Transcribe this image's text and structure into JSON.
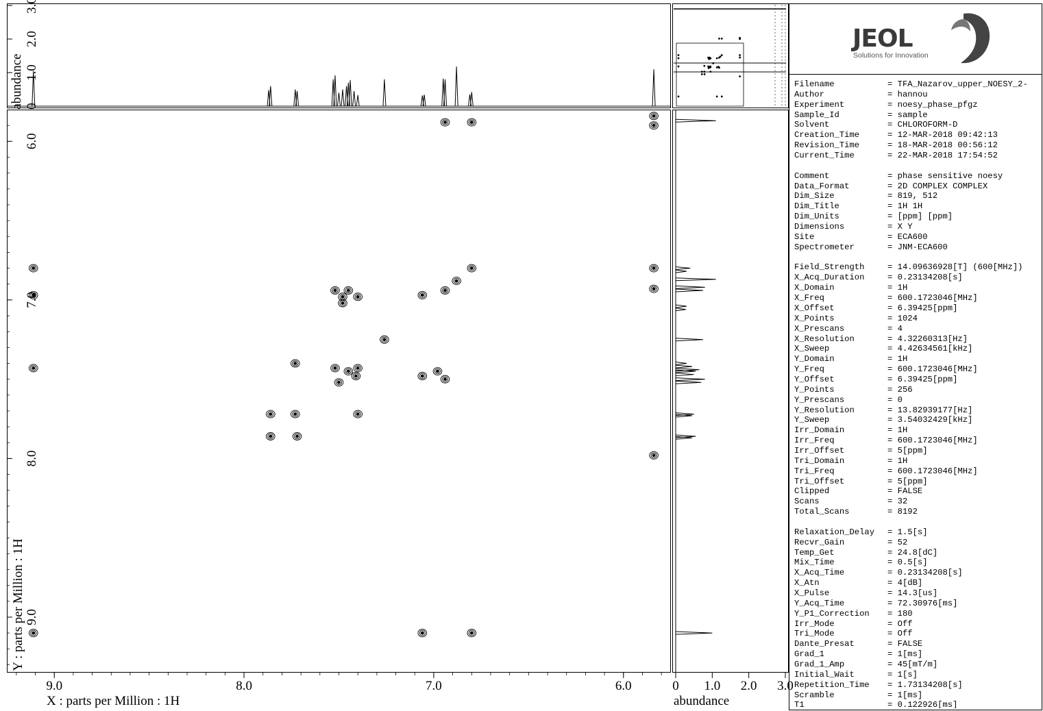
{
  "chart_data": {
    "type": "contour",
    "title": "",
    "xlabel": "X : parts per Million : 1H",
    "ylabel": "Y : parts per Million : 1H",
    "xlim": [
      9.25,
      5.75
    ],
    "ylim": [
      5.8,
      9.35
    ],
    "x_ticks": [
      9.0,
      8.0,
      7.0,
      6.0
    ],
    "x_tick_labels": [
      "9.0",
      "8.0",
      "7.0",
      "6.0"
    ],
    "y_ticks": [
      6.0,
      7.0,
      8.0,
      9.0
    ],
    "y_tick_labels": [
      "6.0",
      "7.0",
      "8.0",
      "9.0"
    ],
    "grid": false,
    "cross_peaks": [
      {
        "x": 9.11,
        "y": 6.8
      },
      {
        "x": 9.11,
        "y": 6.97
      },
      {
        "x": 9.11,
        "y": 7.43
      },
      {
        "x": 9.11,
        "y": 9.1
      },
      {
        "x": 5.84,
        "y": 5.9
      },
      {
        "x": 5.84,
        "y": 5.84
      },
      {
        "x": 5.84,
        "y": 6.8
      },
      {
        "x": 5.84,
        "y": 6.93
      },
      {
        "x": 5.84,
        "y": 7.98
      },
      {
        "x": 6.8,
        "y": 5.88
      },
      {
        "x": 6.94,
        "y": 5.88
      },
      {
        "x": 6.8,
        "y": 6.8
      },
      {
        "x": 6.88,
        "y": 6.88
      },
      {
        "x": 6.94,
        "y": 6.94
      },
      {
        "x": 7.06,
        "y": 6.97
      },
      {
        "x": 7.26,
        "y": 7.25
      },
      {
        "x": 7.45,
        "y": 6.94
      },
      {
        "x": 7.52,
        "y": 6.94
      },
      {
        "x": 7.48,
        "y": 6.98
      },
      {
        "x": 7.4,
        "y": 6.98
      },
      {
        "x": 7.48,
        "y": 7.02
      },
      {
        "x": 7.73,
        "y": 7.4
      },
      {
        "x": 7.52,
        "y": 7.43
      },
      {
        "x": 7.45,
        "y": 7.45
      },
      {
        "x": 7.4,
        "y": 7.43
      },
      {
        "x": 7.5,
        "y": 7.52
      },
      {
        "x": 7.41,
        "y": 7.48
      },
      {
        "x": 7.06,
        "y": 7.48
      },
      {
        "x": 6.98,
        "y": 7.45
      },
      {
        "x": 6.94,
        "y": 7.5
      },
      {
        "x": 7.86,
        "y": 7.72
      },
      {
        "x": 7.73,
        "y": 7.72
      },
      {
        "x": 7.4,
        "y": 7.72
      },
      {
        "x": 7.86,
        "y": 7.86
      },
      {
        "x": 7.72,
        "y": 7.86
      },
      {
        "x": 7.06,
        "y": 9.1
      },
      {
        "x": 6.8,
        "y": 9.1
      }
    ],
    "top_projection": {
      "xlabel": "",
      "ylabel": "abundance",
      "ylim": [
        0,
        3.0
      ],
      "y_ticks": [
        0,
        1.0,
        2.0,
        3.0
      ],
      "y_tick_labels": [
        "0",
        "1.0",
        "2.0",
        "3.0"
      ],
      "peaks": [
        {
          "x": 9.11,
          "h": 1.05
        },
        {
          "x": 7.87,
          "h": 0.48
        },
        {
          "x": 7.86,
          "h": 0.6
        },
        {
          "x": 7.73,
          "h": 0.5
        },
        {
          "x": 7.72,
          "h": 0.45
        },
        {
          "x": 7.53,
          "h": 0.8
        },
        {
          "x": 7.52,
          "h": 0.92
        },
        {
          "x": 7.5,
          "h": 0.4
        },
        {
          "x": 7.48,
          "h": 0.5
        },
        {
          "x": 7.46,
          "h": 0.6
        },
        {
          "x": 7.45,
          "h": 0.7
        },
        {
          "x": 7.44,
          "h": 0.78
        },
        {
          "x": 7.42,
          "h": 0.45
        },
        {
          "x": 7.4,
          "h": 0.33
        },
        {
          "x": 7.26,
          "h": 0.8
        },
        {
          "x": 7.06,
          "h": 0.32
        },
        {
          "x": 7.05,
          "h": 0.34
        },
        {
          "x": 6.95,
          "h": 0.82
        },
        {
          "x": 6.94,
          "h": 0.8
        },
        {
          "x": 6.88,
          "h": 1.18
        },
        {
          "x": 6.81,
          "h": 0.35
        },
        {
          "x": 6.8,
          "h": 0.42
        },
        {
          "x": 5.84,
          "h": 1.1
        }
      ]
    },
    "right_projection": {
      "xlabel": "abundance",
      "xlim": [
        0,
        3.0
      ],
      "x_ticks": [
        0,
        1.0,
        2.0,
        3.0
      ],
      "x_tick_labels": [
        "0",
        "1.0",
        "2.0",
        "3.0"
      ],
      "peaks": [
        {
          "y": 5.87,
          "h": 1.1
        },
        {
          "y": 6.8,
          "h": 0.4
        },
        {
          "y": 6.82,
          "h": 0.3
        },
        {
          "y": 6.87,
          "h": 1.1
        },
        {
          "y": 6.92,
          "h": 0.8
        },
        {
          "y": 6.94,
          "h": 0.75
        },
        {
          "y": 7.04,
          "h": 0.3
        },
        {
          "y": 7.06,
          "h": 0.28
        },
        {
          "y": 7.25,
          "h": 0.75
        },
        {
          "y": 7.4,
          "h": 0.3
        },
        {
          "y": 7.42,
          "h": 0.45
        },
        {
          "y": 7.44,
          "h": 0.65
        },
        {
          "y": 7.45,
          "h": 0.55
        },
        {
          "y": 7.47,
          "h": 0.5
        },
        {
          "y": 7.5,
          "h": 0.8
        },
        {
          "y": 7.52,
          "h": 0.7
        },
        {
          "y": 7.72,
          "h": 0.5
        },
        {
          "y": 7.73,
          "h": 0.45
        },
        {
          "y": 7.86,
          "h": 0.55
        },
        {
          "y": 7.87,
          "h": 0.45
        },
        {
          "y": 9.1,
          "h": 1.0
        }
      ]
    }
  },
  "logo": {
    "brand": "JEOL",
    "tagline": "Solutions for Innovation"
  },
  "parameters": [
    {
      "key": "Filename",
      "value": "= TFA_Nazarov_upper_NOESY_2-"
    },
    {
      "key": "Author",
      "value": "= hannou"
    },
    {
      "key": "Experiment",
      "value": "= noesy_phase_pfgz"
    },
    {
      "key": "Sample_Id",
      "value": "= sample"
    },
    {
      "key": "Solvent",
      "value": "= CHLOROFORM-D"
    },
    {
      "key": "Creation_Time",
      "value": "= 12-MAR-2018 09:42:13"
    },
    {
      "key": "Revision_Time",
      "value": "= 18-MAR-2018 00:56:12"
    },
    {
      "key": "Current_Time",
      "value": "= 22-MAR-2018 17:54:52"
    },
    {
      "key": "",
      "value": ""
    },
    {
      "key": "Comment",
      "value": "= phase sensitive noesy"
    },
    {
      "key": "Data_Format",
      "value": "= 2D COMPLEX COMPLEX"
    },
    {
      "key": "Dim_Size",
      "value": "= 819, 512"
    },
    {
      "key": "Dim_Title",
      "value": "= 1H 1H"
    },
    {
      "key": "Dim_Units",
      "value": "= [ppm] [ppm]"
    },
    {
      "key": "Dimensions",
      "value": "= X Y"
    },
    {
      "key": "Site",
      "value": "= ECA600"
    },
    {
      "key": "Spectrometer",
      "value": "= JNM-ECA600"
    },
    {
      "key": "",
      "value": ""
    },
    {
      "key": "Field_Strength",
      "value": "= 14.09636928[T] (600[MHz])"
    },
    {
      "key": "X_Acq_Duration",
      "value": "= 0.23134208[s]"
    },
    {
      "key": "X_Domain",
      "value": "= 1H"
    },
    {
      "key": "X_Freq",
      "value": "= 600.1723046[MHz]"
    },
    {
      "key": "X_Offset",
      "value": "= 6.39425[ppm]"
    },
    {
      "key": "X_Points",
      "value": "= 1024"
    },
    {
      "key": "X_Prescans",
      "value": "= 4"
    },
    {
      "key": "X_Resolution",
      "value": "= 4.32260313[Hz]"
    },
    {
      "key": "X_Sweep",
      "value": "= 4.42634561[kHz]"
    },
    {
      "key": "Y_Domain",
      "value": "= 1H"
    },
    {
      "key": "Y_Freq",
      "value": "= 600.1723046[MHz]"
    },
    {
      "key": "Y_Offset",
      "value": "= 6.39425[ppm]"
    },
    {
      "key": "Y_Points",
      "value": "= 256"
    },
    {
      "key": "Y_Prescans",
      "value": "= 0"
    },
    {
      "key": "Y_Resolution",
      "value": "= 13.82939177[Hz]"
    },
    {
      "key": "Y_Sweep",
      "value": "= 3.54032429[kHz]"
    },
    {
      "key": "Irr_Domain",
      "value": "= 1H"
    },
    {
      "key": "Irr_Freq",
      "value": "= 600.1723046[MHz]"
    },
    {
      "key": "Irr_Offset",
      "value": "= 5[ppm]"
    },
    {
      "key": "Tri_Domain",
      "value": "= 1H"
    },
    {
      "key": "Tri_Freq",
      "value": "= 600.1723046[MHz]"
    },
    {
      "key": "Tri_Offset",
      "value": "= 5[ppm]"
    },
    {
      "key": "Clipped",
      "value": "= FALSE"
    },
    {
      "key": "Scans",
      "value": "= 32"
    },
    {
      "key": "Total_Scans",
      "value": "= 8192"
    },
    {
      "key": "",
      "value": ""
    },
    {
      "key": "Relaxation_Delay",
      "value": "= 1.5[s]"
    },
    {
      "key": "Recvr_Gain",
      "value": "= 52"
    },
    {
      "key": "Temp_Get",
      "value": "= 24.8[dC]"
    },
    {
      "key": "Mix_Time",
      "value": "= 0.5[s]"
    },
    {
      "key": "X_Acq_Time",
      "value": "= 0.23134208[s]"
    },
    {
      "key": "X_Atn",
      "value": "= 4[dB]"
    },
    {
      "key": "X_Pulse",
      "value": "= 14.3[us]"
    },
    {
      "key": "Y_Acq_Time",
      "value": "= 72.30976[ms]"
    },
    {
      "key": "Y_P1_Correction",
      "value": "= 180"
    },
    {
      "key": "Irr_Mode",
      "value": "= Off"
    },
    {
      "key": "Tri_Mode",
      "value": "= Off"
    },
    {
      "key": "Dante_Presat",
      "value": "= FALSE"
    },
    {
      "key": "Grad_1",
      "value": "= 1[ms]"
    },
    {
      "key": "Grad_1_Amp",
      "value": "= 45[mT/m]"
    },
    {
      "key": "Initial_Wait",
      "value": "= 1[s]"
    },
    {
      "key": "Repetition_Time",
      "value": "= 1.73134208[s]"
    },
    {
      "key": "Scramble",
      "value": "= 1[ms]"
    },
    {
      "key": "T1",
      "value": "= 0.122926[ms]"
    }
  ]
}
